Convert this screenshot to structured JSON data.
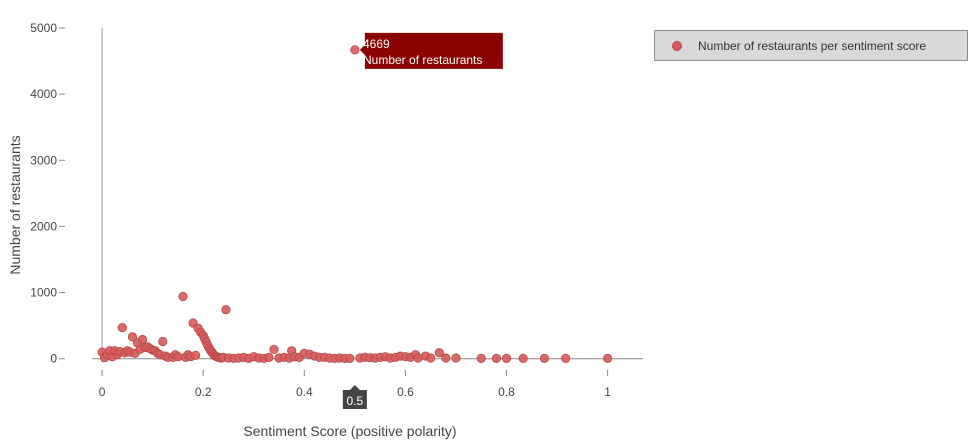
{
  "chart_data": {
    "type": "scatter",
    "xlabel": "Sentiment Score (positive polarity)",
    "ylabel": "Number of restaurants",
    "xlim": [
      -0.02,
      1.07
    ],
    "ylim": [
      -50,
      5000
    ],
    "x_ticks": [
      0,
      0.2,
      0.4,
      0.6,
      0.8,
      1
    ],
    "x_tick_labels": [
      "0",
      "0.2",
      "0.4",
      "0.6",
      "0.8",
      "1"
    ],
    "y_ticks": [
      0,
      1000,
      2000,
      3000,
      4000,
      5000
    ],
    "y_tick_labels": [
      "0",
      "1000",
      "2000",
      "3000",
      "4000",
      "5000"
    ],
    "grid": false,
    "legend_position": "top-right",
    "marker_color": "#d85a5a",
    "series": [
      {
        "name": "Number of restaurants per sentiment score",
        "x": [
          0,
          0.005,
          0.01,
          0.015,
          0.02,
          0.025,
          0.03,
          0.035,
          0.04,
          0.045,
          0.05,
          0.055,
          0.06,
          0.065,
          0.07,
          0.075,
          0.08,
          0.085,
          0.09,
          0.095,
          0.1,
          0.105,
          0.11,
          0.115,
          0.12,
          0.125,
          0.13,
          0.14,
          0.145,
          0.15,
          0.16,
          0.165,
          0.17,
          0.175,
          0.18,
          0.185,
          0.19,
          0.195,
          0.2,
          0.203,
          0.206,
          0.209,
          0.212,
          0.215,
          0.218,
          0.221,
          0.224,
          0.227,
          0.23,
          0.233,
          0.236,
          0.24,
          0.245,
          0.25,
          0.26,
          0.27,
          0.28,
          0.29,
          0.3,
          0.31,
          0.32,
          0.33,
          0.34,
          0.35,
          0.36,
          0.37,
          0.375,
          0.38,
          0.39,
          0.4,
          0.41,
          0.42,
          0.43,
          0.44,
          0.45,
          0.46,
          0.47,
          0.48,
          0.49,
          0.5,
          0.51,
          0.52,
          0.53,
          0.54,
          0.55,
          0.56,
          0.57,
          0.58,
          0.59,
          0.6,
          0.61,
          0.62,
          0.625,
          0.64,
          0.65,
          0.667,
          0.68,
          0.7,
          0.75,
          0.78,
          0.8,
          0.833,
          0.875,
          0.917,
          1
        ],
        "y": [
          100,
          15,
          60,
          120,
          30,
          120,
          60,
          110,
          470,
          90,
          120,
          100,
          330,
          80,
          240,
          140,
          290,
          170,
          180,
          150,
          130,
          120,
          80,
          60,
          260,
          40,
          20,
          20,
          60,
          30,
          940,
          20,
          60,
          30,
          540,
          50,
          460,
          400,
          350,
          300,
          250,
          200,
          160,
          120,
          90,
          60,
          40,
          30,
          20,
          15,
          10,
          20,
          740,
          10,
          5,
          10,
          20,
          5,
          30,
          10,
          5,
          20,
          140,
          10,
          20,
          10,
          120,
          30,
          20,
          80,
          70,
          40,
          20,
          20,
          10,
          5,
          10,
          5,
          5,
          4669,
          10,
          20,
          15,
          10,
          20,
          30,
          10,
          20,
          40,
          30,
          20,
          60,
          10,
          40,
          10,
          90,
          10,
          10,
          5,
          5,
          5,
          5,
          5,
          5,
          5
        ]
      }
    ],
    "hover_label": {
      "x_value": "0.5",
      "y_value": "4669",
      "series_name": "Number of restaurants"
    },
    "hover_color": "#8b0000"
  }
}
